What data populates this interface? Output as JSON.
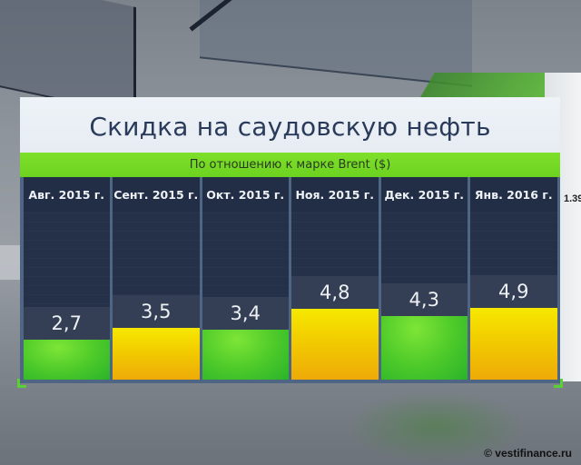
{
  "title": "Скидка на саудовскую нефть",
  "subtitle": "По отношению к марке Brent ($)",
  "columns": [
    {
      "label": "Авг. 2015 г.",
      "value": "2,7",
      "color": "green"
    },
    {
      "label": "Сент. 2015 г.",
      "value": "3,5",
      "color": "yellow"
    },
    {
      "label": "Окт. 2015 г.",
      "value": "3,4",
      "color": "green"
    },
    {
      "label": "Ноя. 2015 г.",
      "value": "4,8",
      "color": "yellow"
    },
    {
      "label": "Дек. 2015 г.",
      "value": "4,3",
      "color": "green"
    },
    {
      "label": "Янв. 2016 г.",
      "value": "4,9",
      "color": "yellow"
    }
  ],
  "background": {
    "edge_number": "1.39"
  },
  "copyright": "© vestifinance.ru",
  "colors": {
    "title": "#2a3a5a",
    "band": "#7ee02a",
    "green_bar": "#4fcb2a",
    "yellow_bar": "#f2cc00",
    "column_bg": "#243149"
  },
  "chart_data": {
    "type": "bar",
    "title": "Скидка на саудовскую нефть",
    "subtitle": "По отношению к марке Brent ($)",
    "categories": [
      "Авг. 2015 г.",
      "Сент. 2015 г.",
      "Окт. 2015 г.",
      "Ноя. 2015 г.",
      "Дек. 2015 г.",
      "Янв. 2016 г."
    ],
    "values": [
      2.7,
      3.5,
      3.4,
      4.8,
      4.3,
      4.9
    ],
    "value_labels": [
      "2,7",
      "3,5",
      "3,4",
      "4,8",
      "4,3",
      "4,9"
    ],
    "bar_colors": [
      "green",
      "yellow",
      "green",
      "yellow",
      "green",
      "yellow"
    ],
    "xlabel": "",
    "ylabel": "$",
    "ylim": [
      0,
      6.5
    ],
    "grid": false,
    "legend": null
  }
}
